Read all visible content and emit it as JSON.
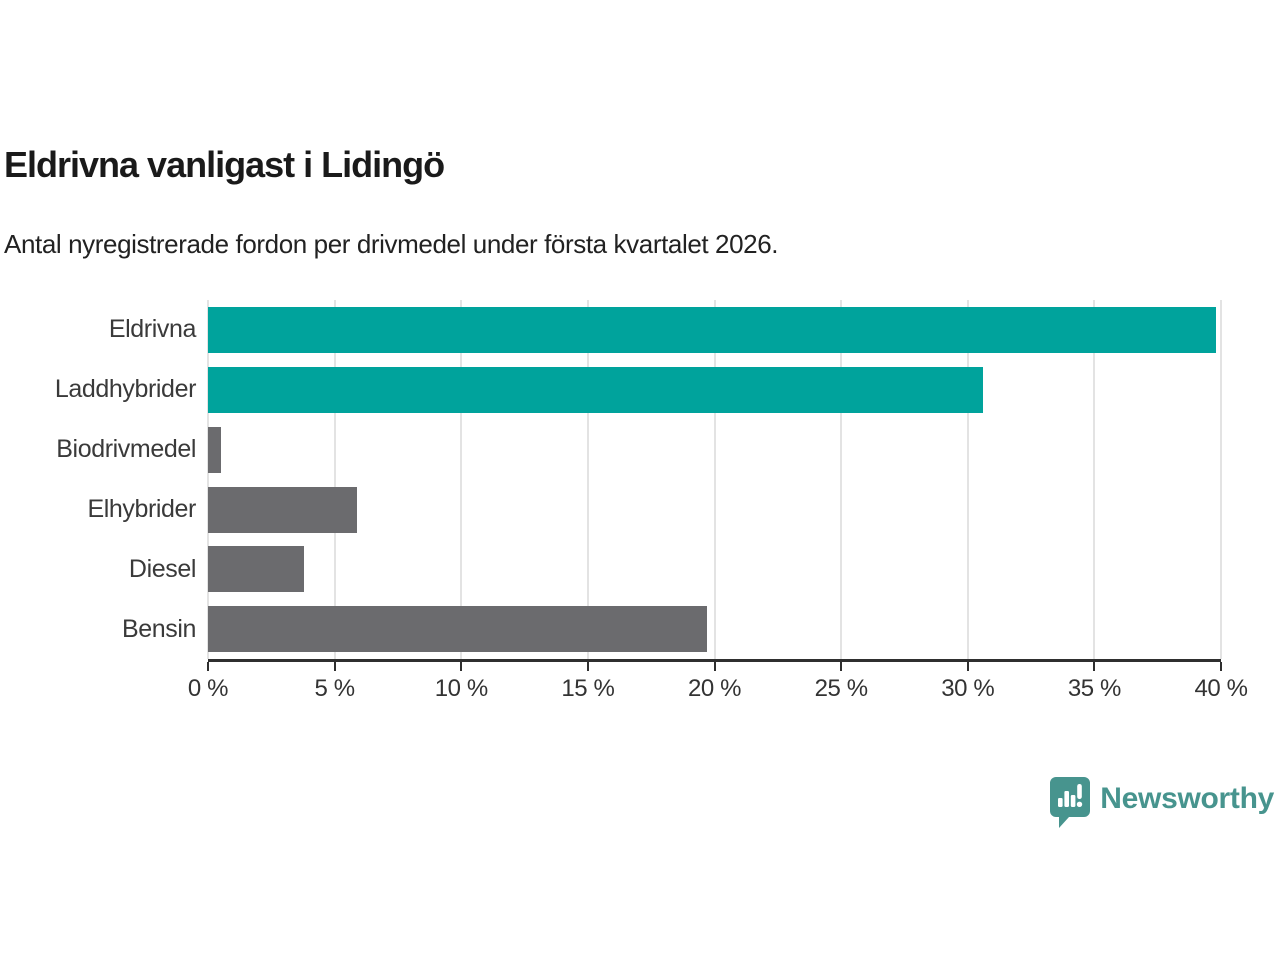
{
  "chart_data": {
    "type": "bar",
    "orientation": "horizontal",
    "title": "Eldrivna vanligast i Lidingö",
    "subtitle": "Antal nyregistrerade fordon per drivmedel under första kvartalet 2026.",
    "categories": [
      "Eldrivna",
      "Laddhybrider",
      "Biodrivmedel",
      "Elhybrider",
      "Diesel",
      "Bensin"
    ],
    "values": [
      39.8,
      30.6,
      0.5,
      5.9,
      3.8,
      19.7
    ],
    "unit": "%",
    "xlim": [
      0,
      40
    ],
    "x_ticks": [
      0,
      5,
      10,
      15,
      20,
      25,
      30,
      35,
      40
    ],
    "x_tick_labels": [
      "0 %",
      "5 %",
      "10 %",
      "15 %",
      "20 %",
      "25 %",
      "30 %",
      "35 %",
      "40 %"
    ],
    "bar_colors": [
      "#00a39c",
      "#00a39c",
      "#6b6b6e",
      "#6b6b6e",
      "#6b6b6e",
      "#6b6b6e"
    ],
    "highlight_color": "#00a39c",
    "default_color": "#6b6b6e",
    "gridline_color": "#e3e3e3",
    "axis_color": "#2f2f2f",
    "grid": true,
    "legend": false,
    "xlabel": "",
    "ylabel": ""
  },
  "footer": {
    "brand": "Newsworthy",
    "brand_color": "#47948e"
  }
}
